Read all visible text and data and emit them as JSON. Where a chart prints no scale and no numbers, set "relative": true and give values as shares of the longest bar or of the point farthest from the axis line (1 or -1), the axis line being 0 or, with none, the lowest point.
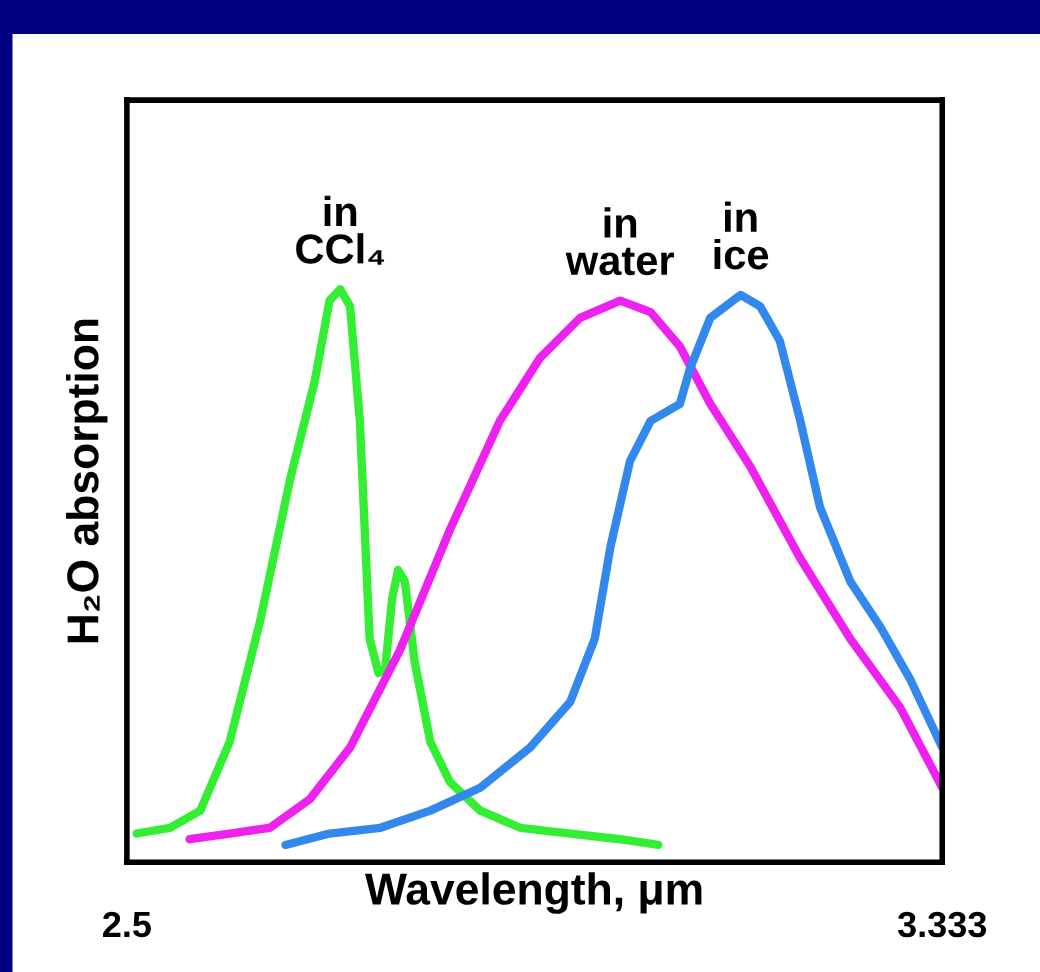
{
  "chart_data": {
    "type": "line",
    "relative": true,
    "xlabel": "Wavelength, μm",
    "ylabel": "H₂O absorption",
    "xlim": [
      2.5,
      3.333
    ],
    "xticks": [
      2.5,
      3.333
    ],
    "legend": false,
    "marker": "none",
    "line_style": "solid",
    "series": [
      {
        "name": "in\nCCl₄",
        "color": "#33ee33",
        "x": [
          2.51,
          2.544,
          2.575,
          2.605,
          2.636,
          2.667,
          2.692,
          2.707,
          2.718,
          2.728,
          2.738,
          2.748,
          2.757,
          2.764,
          2.771,
          2.777,
          2.784,
          2.794,
          2.81,
          2.83,
          2.861,
          2.902,
          2.953,
          3.004,
          3.043
        ],
        "values": [
          0.05,
          0.06,
          0.09,
          0.21,
          0.42,
          0.67,
          0.84,
          0.98,
          1.0,
          0.97,
          0.77,
          0.39,
          0.33,
          0.34,
          0.46,
          0.51,
          0.49,
          0.35,
          0.21,
          0.14,
          0.09,
          0.06,
          0.05,
          0.04,
          0.03
        ]
      },
      {
        "name": "in\nwater",
        "color": "#ee22ee",
        "x": [
          2.564,
          2.605,
          2.646,
          2.687,
          2.728,
          2.779,
          2.83,
          2.881,
          2.922,
          2.963,
          3.004,
          3.035,
          3.065,
          3.096,
          3.137,
          3.188,
          3.239,
          3.29,
          3.333
        ],
        "values": [
          0.04,
          0.05,
          0.06,
          0.11,
          0.2,
          0.37,
          0.58,
          0.77,
          0.88,
          0.95,
          0.98,
          0.96,
          0.9,
          0.8,
          0.69,
          0.53,
          0.39,
          0.27,
          0.13
        ]
      },
      {
        "name": "in\nice",
        "color": "#3388ee",
        "x": [
          2.662,
          2.707,
          2.759,
          2.81,
          2.861,
          2.912,
          2.953,
          2.978,
          2.994,
          3.014,
          3.035,
          3.065,
          3.075,
          3.096,
          3.127,
          3.147,
          3.167,
          3.188,
          3.208,
          3.239,
          3.27,
          3.3,
          3.333
        ],
        "values": [
          0.03,
          0.05,
          0.06,
          0.09,
          0.13,
          0.2,
          0.28,
          0.39,
          0.55,
          0.7,
          0.77,
          0.8,
          0.86,
          0.95,
          0.99,
          0.97,
          0.91,
          0.77,
          0.62,
          0.49,
          0.41,
          0.32,
          0.2
        ]
      }
    ]
  }
}
